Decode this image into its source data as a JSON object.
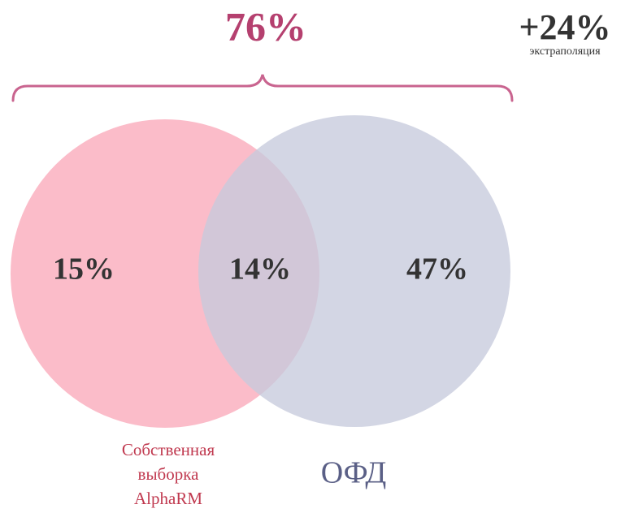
{
  "header": {
    "total": "76%",
    "extra": "+24%",
    "extra_caption": "экстраполяция"
  },
  "regions": {
    "left_only": "15%",
    "overlap": "14%",
    "right_only": "47%"
  },
  "sets": [
    {
      "label_lines": [
        "Собственная",
        "выборка",
        "AlphaRM"
      ]
    },
    {
      "label": "ОФД"
    }
  ]
}
